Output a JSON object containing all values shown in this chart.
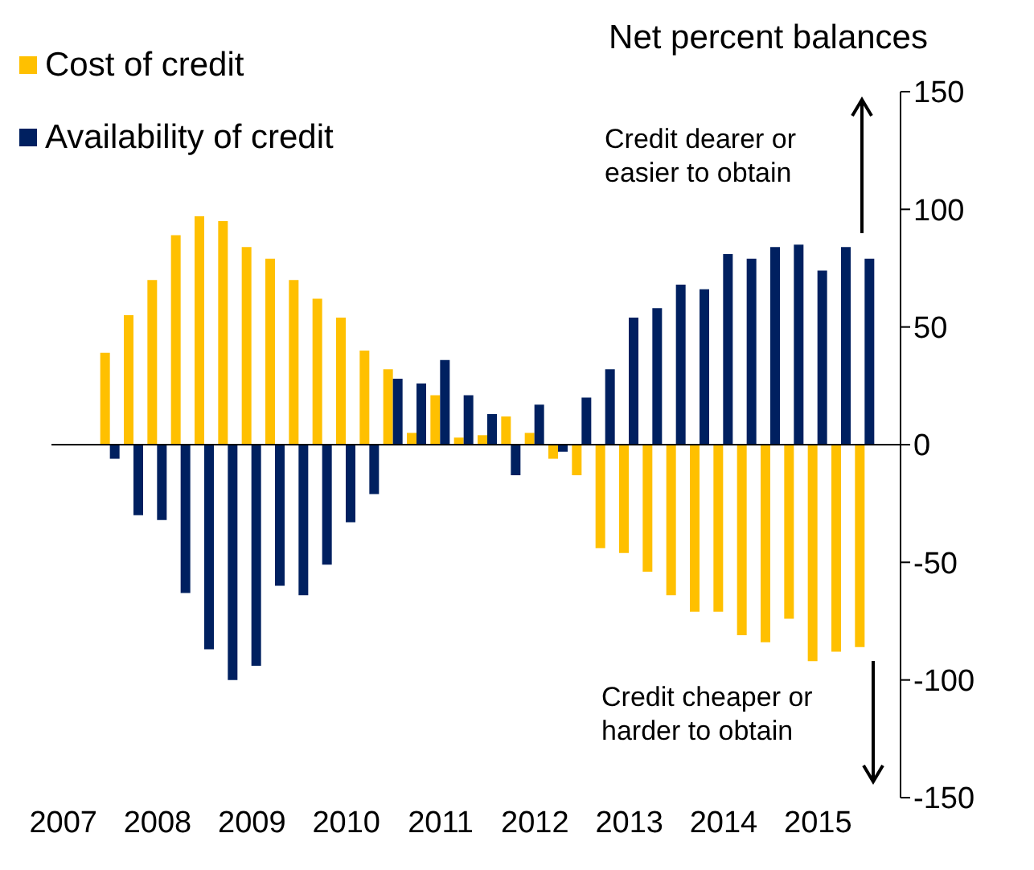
{
  "chart_data": {
    "type": "bar",
    "ylabel": "Net percent balances",
    "categories": [
      "2007",
      null,
      null,
      null,
      "2008",
      null,
      null,
      null,
      "2009",
      null,
      null,
      null,
      "2010",
      null,
      null,
      null,
      "2011",
      null,
      null,
      null,
      "2012",
      null,
      null,
      null,
      "2013",
      null,
      null,
      null,
      "2014",
      null,
      null,
      null,
      "2015",
      null,
      null,
      null
    ],
    "series": [
      {
        "name": "Cost of credit",
        "color": "#ffc000",
        "values": [
          null,
          null,
          39,
          55,
          70,
          89,
          97,
          95,
          84,
          79,
          70,
          62,
          54,
          40,
          32,
          5,
          21,
          3,
          4,
          12,
          5,
          -6,
          -13,
          -44,
          -46,
          -54,
          -64,
          -71,
          -71,
          -81,
          -84,
          -74,
          -92,
          -88,
          -86,
          null
        ]
      },
      {
        "name": "Availability of credit",
        "color": "#002060",
        "values": [
          null,
          null,
          -6,
          -30,
          -32,
          -63,
          -87,
          -100,
          -94,
          -60,
          -64,
          -51,
          -33,
          -21,
          28,
          26,
          36,
          21,
          13,
          -13,
          17,
          -3,
          20,
          32,
          54,
          58,
          68,
          66,
          81,
          79,
          84,
          85,
          74,
          84,
          79,
          null
        ]
      }
    ],
    "ylim": [
      -150,
      150
    ],
    "yticks": [
      -150,
      -100,
      -50,
      0,
      50,
      100,
      150
    ],
    "annotations": [
      "Credit dearer or easier to obtain",
      "Credit cheaper or harder to obtain"
    ],
    "ref_lines": [
      {
        "axis": "y",
        "value": 0,
        "color": "#000000"
      }
    ],
    "legend": "top left",
    "grid": false
  }
}
